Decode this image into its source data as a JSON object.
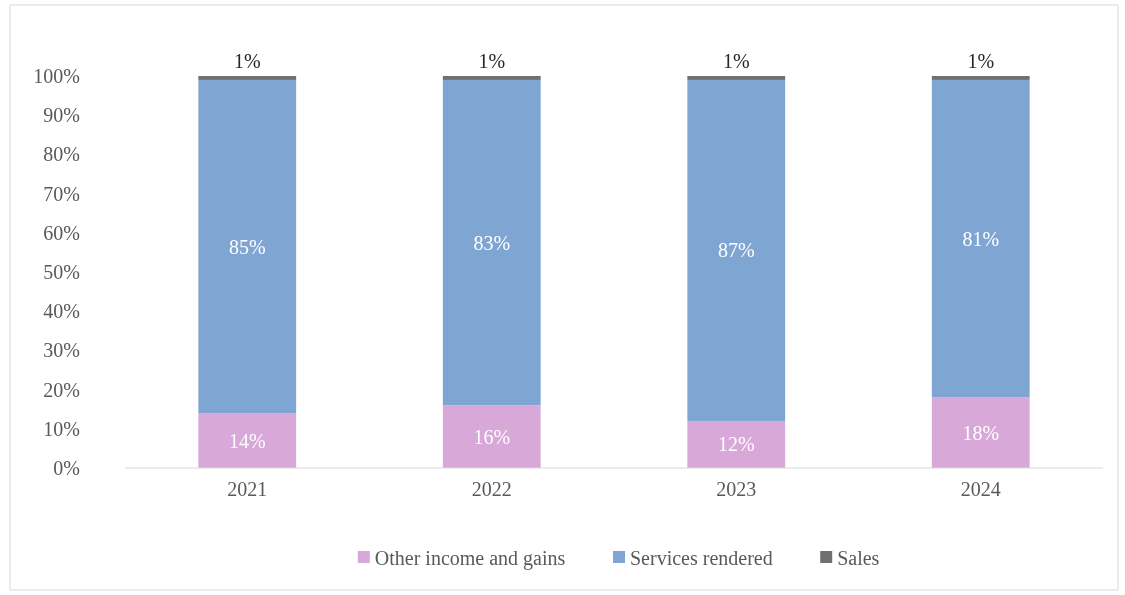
{
  "chart_data": {
    "type": "bar",
    "stacked": true,
    "categories": [
      "2021",
      "2022",
      "2023",
      "2024"
    ],
    "series": [
      {
        "name": "Other income and gains",
        "color": "#d8a8d8",
        "values": [
          14,
          16,
          12,
          18
        ],
        "value_labels": [
          "14%",
          "16%",
          "12%",
          "18%"
        ]
      },
      {
        "name": "Services rendered",
        "color": "#7fa6d3",
        "values": [
          85,
          83,
          87,
          81
        ],
        "value_labels": [
          "85%",
          "83%",
          "87%",
          "81%"
        ]
      },
      {
        "name": "Sales",
        "color": "#707070",
        "values": [
          1,
          1,
          1,
          1
        ],
        "value_labels": [
          "1%",
          "1%",
          "1%",
          "1%"
        ]
      }
    ],
    "ylim": [
      0,
      100
    ],
    "yticks": [
      {
        "value": 0,
        "label": "0%"
      },
      {
        "value": 10,
        "label": "10%"
      },
      {
        "value": 20,
        "label": "20%"
      },
      {
        "value": 30,
        "label": "30%"
      },
      {
        "value": 40,
        "label": "40%"
      },
      {
        "value": 50,
        "label": "50%"
      },
      {
        "value": 60,
        "label": "60%"
      },
      {
        "value": 70,
        "label": "70%"
      },
      {
        "value": 80,
        "label": "80%"
      },
      {
        "value": 90,
        "label": "90%"
      },
      {
        "value": 100,
        "label": "100%"
      }
    ],
    "grid": false,
    "legend": "bottom"
  }
}
